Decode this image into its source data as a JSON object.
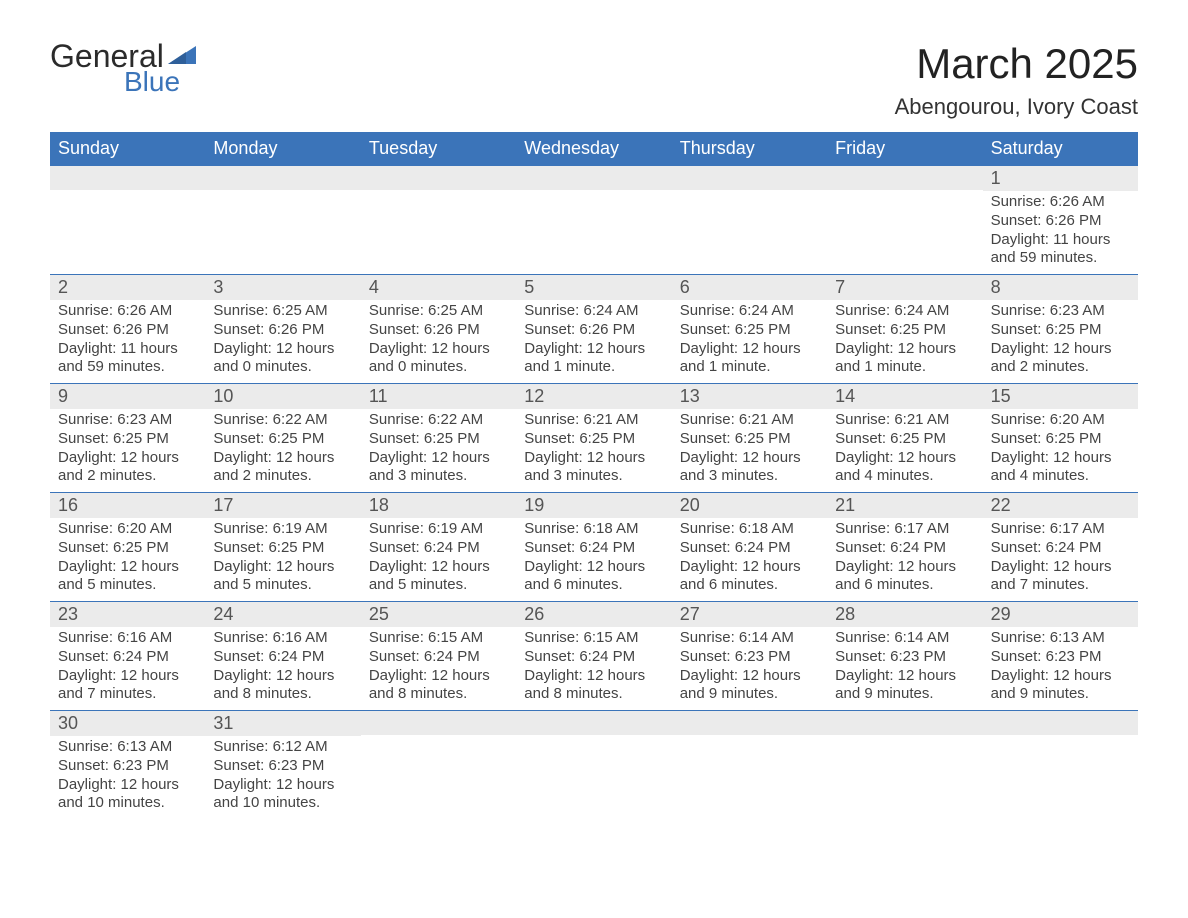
{
  "colors": {
    "brand_blue": "#3b74b9",
    "header_bg": "#3b74b9",
    "header_text": "#ffffff",
    "daystrip_bg": "#ebebeb",
    "text": "#333333",
    "row_border": "#3b74b9"
  },
  "logo": {
    "line1": "General",
    "line2": "Blue"
  },
  "title": "March 2025",
  "location": "Abengourou, Ivory Coast",
  "weekdays": [
    "Sunday",
    "Monday",
    "Tuesday",
    "Wednesday",
    "Thursday",
    "Friday",
    "Saturday"
  ],
  "weeks": [
    [
      {
        "day": "",
        "sunrise": "",
        "sunset": "",
        "daylight": ""
      },
      {
        "day": "",
        "sunrise": "",
        "sunset": "",
        "daylight": ""
      },
      {
        "day": "",
        "sunrise": "",
        "sunset": "",
        "daylight": ""
      },
      {
        "day": "",
        "sunrise": "",
        "sunset": "",
        "daylight": ""
      },
      {
        "day": "",
        "sunrise": "",
        "sunset": "",
        "daylight": ""
      },
      {
        "day": "",
        "sunrise": "",
        "sunset": "",
        "daylight": ""
      },
      {
        "day": "1",
        "sunrise": "Sunrise: 6:26 AM",
        "sunset": "Sunset: 6:26 PM",
        "daylight": "Daylight: 11 hours and 59 minutes."
      }
    ],
    [
      {
        "day": "2",
        "sunrise": "Sunrise: 6:26 AM",
        "sunset": "Sunset: 6:26 PM",
        "daylight": "Daylight: 11 hours and 59 minutes."
      },
      {
        "day": "3",
        "sunrise": "Sunrise: 6:25 AM",
        "sunset": "Sunset: 6:26 PM",
        "daylight": "Daylight: 12 hours and 0 minutes."
      },
      {
        "day": "4",
        "sunrise": "Sunrise: 6:25 AM",
        "sunset": "Sunset: 6:26 PM",
        "daylight": "Daylight: 12 hours and 0 minutes."
      },
      {
        "day": "5",
        "sunrise": "Sunrise: 6:24 AM",
        "sunset": "Sunset: 6:26 PM",
        "daylight": "Daylight: 12 hours and 1 minute."
      },
      {
        "day": "6",
        "sunrise": "Sunrise: 6:24 AM",
        "sunset": "Sunset: 6:25 PM",
        "daylight": "Daylight: 12 hours and 1 minute."
      },
      {
        "day": "7",
        "sunrise": "Sunrise: 6:24 AM",
        "sunset": "Sunset: 6:25 PM",
        "daylight": "Daylight: 12 hours and 1 minute."
      },
      {
        "day": "8",
        "sunrise": "Sunrise: 6:23 AM",
        "sunset": "Sunset: 6:25 PM",
        "daylight": "Daylight: 12 hours and 2 minutes."
      }
    ],
    [
      {
        "day": "9",
        "sunrise": "Sunrise: 6:23 AM",
        "sunset": "Sunset: 6:25 PM",
        "daylight": "Daylight: 12 hours and 2 minutes."
      },
      {
        "day": "10",
        "sunrise": "Sunrise: 6:22 AM",
        "sunset": "Sunset: 6:25 PM",
        "daylight": "Daylight: 12 hours and 2 minutes."
      },
      {
        "day": "11",
        "sunrise": "Sunrise: 6:22 AM",
        "sunset": "Sunset: 6:25 PM",
        "daylight": "Daylight: 12 hours and 3 minutes."
      },
      {
        "day": "12",
        "sunrise": "Sunrise: 6:21 AM",
        "sunset": "Sunset: 6:25 PM",
        "daylight": "Daylight: 12 hours and 3 minutes."
      },
      {
        "day": "13",
        "sunrise": "Sunrise: 6:21 AM",
        "sunset": "Sunset: 6:25 PM",
        "daylight": "Daylight: 12 hours and 3 minutes."
      },
      {
        "day": "14",
        "sunrise": "Sunrise: 6:21 AM",
        "sunset": "Sunset: 6:25 PM",
        "daylight": "Daylight: 12 hours and 4 minutes."
      },
      {
        "day": "15",
        "sunrise": "Sunrise: 6:20 AM",
        "sunset": "Sunset: 6:25 PM",
        "daylight": "Daylight: 12 hours and 4 minutes."
      }
    ],
    [
      {
        "day": "16",
        "sunrise": "Sunrise: 6:20 AM",
        "sunset": "Sunset: 6:25 PM",
        "daylight": "Daylight: 12 hours and 5 minutes."
      },
      {
        "day": "17",
        "sunrise": "Sunrise: 6:19 AM",
        "sunset": "Sunset: 6:25 PM",
        "daylight": "Daylight: 12 hours and 5 minutes."
      },
      {
        "day": "18",
        "sunrise": "Sunrise: 6:19 AM",
        "sunset": "Sunset: 6:24 PM",
        "daylight": "Daylight: 12 hours and 5 minutes."
      },
      {
        "day": "19",
        "sunrise": "Sunrise: 6:18 AM",
        "sunset": "Sunset: 6:24 PM",
        "daylight": "Daylight: 12 hours and 6 minutes."
      },
      {
        "day": "20",
        "sunrise": "Sunrise: 6:18 AM",
        "sunset": "Sunset: 6:24 PM",
        "daylight": "Daylight: 12 hours and 6 minutes."
      },
      {
        "day": "21",
        "sunrise": "Sunrise: 6:17 AM",
        "sunset": "Sunset: 6:24 PM",
        "daylight": "Daylight: 12 hours and 6 minutes."
      },
      {
        "day": "22",
        "sunrise": "Sunrise: 6:17 AM",
        "sunset": "Sunset: 6:24 PM",
        "daylight": "Daylight: 12 hours and 7 minutes."
      }
    ],
    [
      {
        "day": "23",
        "sunrise": "Sunrise: 6:16 AM",
        "sunset": "Sunset: 6:24 PM",
        "daylight": "Daylight: 12 hours and 7 minutes."
      },
      {
        "day": "24",
        "sunrise": "Sunrise: 6:16 AM",
        "sunset": "Sunset: 6:24 PM",
        "daylight": "Daylight: 12 hours and 8 minutes."
      },
      {
        "day": "25",
        "sunrise": "Sunrise: 6:15 AM",
        "sunset": "Sunset: 6:24 PM",
        "daylight": "Daylight: 12 hours and 8 minutes."
      },
      {
        "day": "26",
        "sunrise": "Sunrise: 6:15 AM",
        "sunset": "Sunset: 6:24 PM",
        "daylight": "Daylight: 12 hours and 8 minutes."
      },
      {
        "day": "27",
        "sunrise": "Sunrise: 6:14 AM",
        "sunset": "Sunset: 6:23 PM",
        "daylight": "Daylight: 12 hours and 9 minutes."
      },
      {
        "day": "28",
        "sunrise": "Sunrise: 6:14 AM",
        "sunset": "Sunset: 6:23 PM",
        "daylight": "Daylight: 12 hours and 9 minutes."
      },
      {
        "day": "29",
        "sunrise": "Sunrise: 6:13 AM",
        "sunset": "Sunset: 6:23 PM",
        "daylight": "Daylight: 12 hours and 9 minutes."
      }
    ],
    [
      {
        "day": "30",
        "sunrise": "Sunrise: 6:13 AM",
        "sunset": "Sunset: 6:23 PM",
        "daylight": "Daylight: 12 hours and 10 minutes."
      },
      {
        "day": "31",
        "sunrise": "Sunrise: 6:12 AM",
        "sunset": "Sunset: 6:23 PM",
        "daylight": "Daylight: 12 hours and 10 minutes."
      },
      {
        "day": "",
        "sunrise": "",
        "sunset": "",
        "daylight": ""
      },
      {
        "day": "",
        "sunrise": "",
        "sunset": "",
        "daylight": ""
      },
      {
        "day": "",
        "sunrise": "",
        "sunset": "",
        "daylight": ""
      },
      {
        "day": "",
        "sunrise": "",
        "sunset": "",
        "daylight": ""
      },
      {
        "day": "",
        "sunrise": "",
        "sunset": "",
        "daylight": ""
      }
    ]
  ]
}
